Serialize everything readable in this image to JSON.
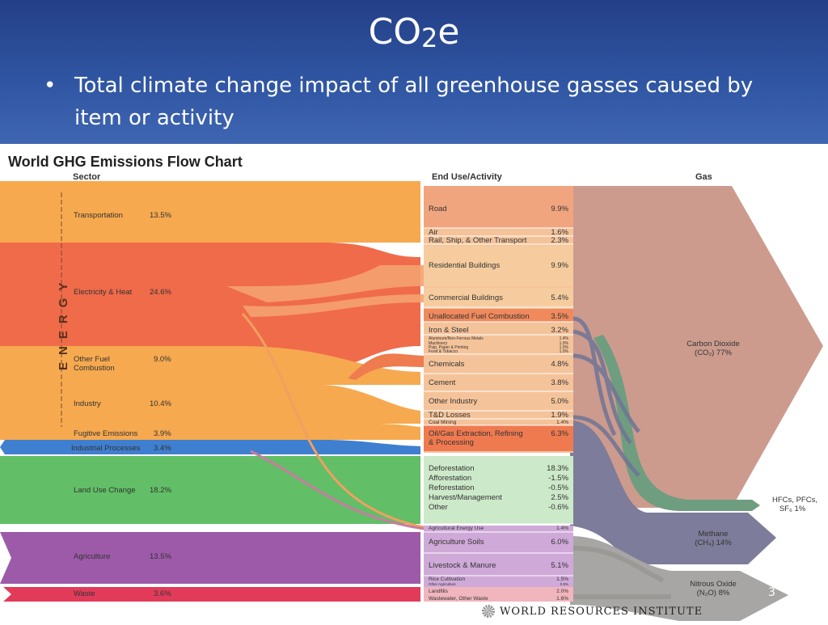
{
  "slide": {
    "title_main": "CO",
    "title_sub": "2",
    "title_end": "e",
    "bullet": "Total climate change impact of all greenhouse gasses caused by item or activity",
    "page_number": "3"
  },
  "chart": {
    "title": "World GHG Emissions Flow Chart",
    "col_sector": "Sector",
    "col_end_use": "End Use/Activity",
    "col_gas": "Gas",
    "energy_label": "ENERGY",
    "sectors": [
      {
        "label": "Transportation",
        "value": "13.5%",
        "color": "#f6a94f"
      },
      {
        "label": "Electricity & Heat",
        "value": "24.6%",
        "color": "#f06b4a"
      },
      {
        "label": "Other Fuel",
        "label2": "Combustion",
        "value": "9.0%",
        "color": "#f6a94f"
      },
      {
        "label": "Industry",
        "value": "10.4%",
        "color": "#f6a94f"
      },
      {
        "label": "Fugitive Emissions",
        "value": "3.9%",
        "color": "#f6a94f"
      },
      {
        "label": "Industrial Processes",
        "value": "3.4%",
        "color": "#3f7fcf"
      },
      {
        "label": "Land Use Change",
        "value": "18.2%",
        "color": "#62be67"
      },
      {
        "label": "Agriculture",
        "value": "13.5%",
        "color": "#9d5aa9"
      },
      {
        "label": "Waste",
        "value": "3.6%",
        "color": "#e23b5a"
      }
    ],
    "end_uses": [
      {
        "label": "Road",
        "value": "9.9%"
      },
      {
        "label": "Air",
        "value": "1.6%"
      },
      {
        "label": "Rail, Ship, & Other Transport",
        "value": "2.3%"
      },
      {
        "label": "Residential Buildings",
        "value": "9.9%"
      },
      {
        "label": "Commercial Buildings",
        "value": "5.4%"
      },
      {
        "label": "Unallocated Fuel Combustion",
        "value": "3.5%"
      },
      {
        "label": "Iron & Steel",
        "value": "3.2%"
      },
      {
        "label": "Aluminum/Non-Ferrous Metals",
        "value": "1.4%"
      },
      {
        "label": "Machinery",
        "value": "1.0%"
      },
      {
        "label": "Pulp, Paper & Printing",
        "value": "1.0%"
      },
      {
        "label": "Food & Tobacco",
        "value": "1.0%"
      },
      {
        "label": "Chemicals",
        "value": "4.8%"
      },
      {
        "label": "Cement",
        "value": "3.8%"
      },
      {
        "label": "Other Industry",
        "value": "5.0%"
      },
      {
        "label": "T&D Losses",
        "value": "1.9%"
      },
      {
        "label": "Coal Mining",
        "value": "1.4%"
      },
      {
        "label": "Oil/Gas Extraction, Refining",
        "label2": "& Processing",
        "value": "6.3%"
      },
      {
        "label": "Deforestation",
        "value": "18.3%"
      },
      {
        "label": "Afforestation",
        "value": "-1.5%"
      },
      {
        "label": "Reforestation",
        "value": "-0.5%"
      },
      {
        "label": "Harvest/Management",
        "value": "2.5%"
      },
      {
        "label": "Other",
        "value": "-0.6%"
      },
      {
        "label": "Agricultural Energy Use",
        "value": "1.4%"
      },
      {
        "label": "Agriculture Soils",
        "value": "6.0%"
      },
      {
        "label": "Livestock & Manure",
        "value": "5.1%"
      },
      {
        "label": "Rice Cultivation",
        "value": "1.5%"
      },
      {
        "label": "Other Agriculture",
        "value": "0.9%"
      },
      {
        "label": "Landfills",
        "value": "2.0%"
      },
      {
        "label": "Wastewater, Other Waste",
        "value": "1.6%"
      }
    ],
    "gases": [
      {
        "label": "Carbon Dioxide",
        "label2": "(CO₂)  77%"
      },
      {
        "label": "HFCs, PFCs,",
        "label2": "SF₆  1%"
      },
      {
        "label": "Methane",
        "label2": "(CH₄)  14%"
      },
      {
        "label": "Nitrous Oxide",
        "label2": "(N₂O)  8%"
      }
    ],
    "colors": {
      "co2": "#cc9b8e",
      "methane": "#7d7c9a",
      "n2o": "#a8a6a4",
      "hfc": "#6f9d80",
      "end_energy": "#f5c39a",
      "end_land": "#cce9c9",
      "end_agri": "#cfa9d8",
      "end_waste": "#f1b5be"
    }
  },
  "footer": {
    "logo_text": "WORLD RESOURCES INSTITUTE"
  }
}
